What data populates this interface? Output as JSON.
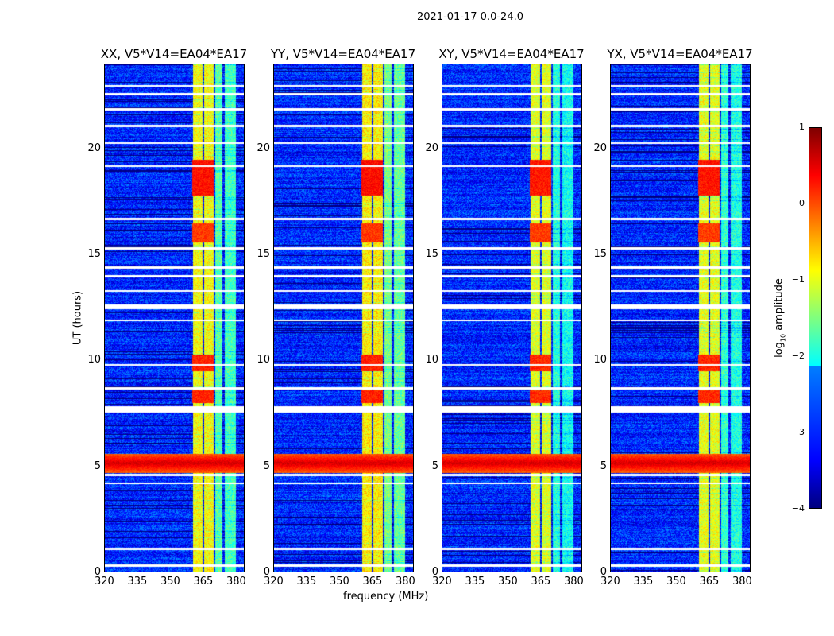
{
  "chart_data": {
    "type": "heatmap",
    "title": "2021-01-17 0.0-24.0",
    "xlabel": "frequency (MHz)",
    "ylabel": "UT (hours)",
    "xlim": [
      320,
      384
    ],
    "ylim": [
      0,
      24
    ],
    "xticks": [
      "320",
      "335",
      "350",
      "365",
      "380"
    ],
    "yticks": [
      "0",
      "5",
      "10",
      "15",
      "20"
    ],
    "panels": [
      {
        "title": "XX, V5*V14=EA04*EA17",
        "strength": 1.0
      },
      {
        "title": "YY, V5*V14=EA04*EA17",
        "strength": 1.1
      },
      {
        "title": "XY, V5*V14=EA04*EA17",
        "strength": 0.85
      },
      {
        "title": "YX, V5*V14=EA04*EA17",
        "strength": 0.9
      }
    ],
    "background_log10_amplitude": -3.2,
    "rfi_bands_mhz": [
      [
        360.5,
        364.7,
        -0.9
      ],
      [
        365.5,
        369.8,
        -0.9
      ],
      [
        370.5,
        374,
        -1.7
      ],
      [
        375,
        380,
        -1.8
      ]
    ],
    "strong_rfi_times_ut": [
      [
        4.7,
        5.6,
        0.6
      ],
      [
        8.0,
        8.6,
        0.2
      ],
      [
        9.5,
        10.3,
        0.2
      ],
      [
        17.8,
        19.5,
        0.3
      ],
      [
        15.6,
        16.5,
        0.1
      ]
    ],
    "flagged_times_ut": [
      0.3,
      1.1,
      4.2,
      4.6,
      7.6,
      7.7,
      7.8,
      8.7,
      9.8,
      11.9,
      12.5,
      12.6,
      13.3,
      14.0,
      14.4,
      15.3,
      16.7,
      19.2,
      20.3,
      21.1,
      21.9,
      22.6,
      23.0
    ],
    "colorbar": {
      "label": "log10 amplitude",
      "label_main": "log",
      "label_sub": "10",
      "label_rest": " amplitude",
      "range": [
        -4,
        1
      ],
      "ticks": [
        "1",
        "0",
        "−1",
        "−2",
        "−3",
        "−4"
      ]
    }
  }
}
